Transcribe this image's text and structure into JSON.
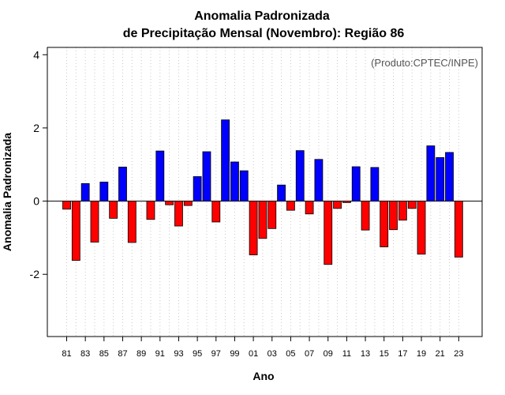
{
  "chart_data": {
    "type": "bar",
    "title": [
      "Anomalia Padronizada",
      "de Precipitação Mensal (Novembro): Região 86"
    ],
    "xlabel": "Ano",
    "ylabel": "Anomalia Padronizada",
    "annotation": "(Produto:CPTEC/INPE)",
    "ylim": [
      -3.7,
      4.2
    ],
    "yticks": [
      -2,
      0,
      2,
      4
    ],
    "grid": "vertical dotted",
    "positive_color": "#0000ff",
    "negative_color": "#ff0000",
    "categories": [
      "81",
      "82",
      "83",
      "84",
      "85",
      "86",
      "87",
      "88",
      "89",
      "90",
      "91",
      "92",
      "93",
      "94",
      "95",
      "96",
      "97",
      "98",
      "99",
      "00",
      "01",
      "02",
      "03",
      "04",
      "05",
      "06",
      "07",
      "08",
      "09",
      "10",
      "11",
      "12",
      "13",
      "14",
      "15",
      "16",
      "17",
      "18",
      "19",
      "20",
      "21",
      "22",
      "23"
    ],
    "tick_labels": [
      "81",
      "83",
      "85",
      "87",
      "89",
      "91",
      "93",
      "95",
      "97",
      "99",
      "01",
      "03",
      "05",
      "07",
      "09",
      "11",
      "13",
      "15",
      "17",
      "19",
      "21",
      "23"
    ],
    "values": [
      -0.22,
      -1.62,
      0.48,
      -1.12,
      0.52,
      -0.47,
      0.93,
      -1.13,
      0.0,
      -0.5,
      1.37,
      -0.1,
      -0.68,
      -0.12,
      0.67,
      1.35,
      -0.57,
      2.22,
      1.07,
      0.83,
      -1.47,
      -1.02,
      -0.75,
      0.44,
      -0.25,
      1.38,
      -0.35,
      1.14,
      -1.73,
      -0.2,
      -0.04,
      0.94,
      -0.79,
      0.92,
      -1.25,
      -0.78,
      -0.52,
      -0.2,
      -1.45,
      1.51,
      1.19,
      1.33,
      -1.53
    ]
  }
}
